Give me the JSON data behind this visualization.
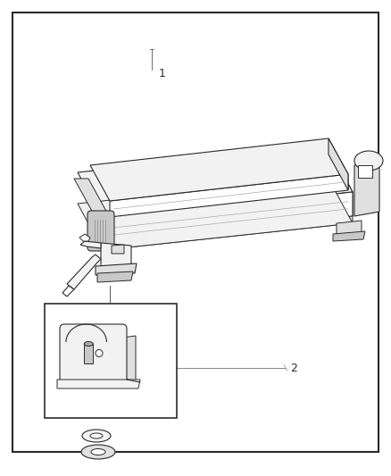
{
  "background_color": "#ffffff",
  "border_color": "#2b2b2b",
  "line_color": "#2b2b2b",
  "fill_white": "#ffffff",
  "fill_light": "#f2f2f2",
  "fill_mid": "#e0e0e0",
  "fill_dark": "#c8c8c8",
  "fill_darker": "#aaaaaa",
  "label1_text": "1",
  "label2_text": "2",
  "fig_width": 4.38,
  "fig_height": 5.33,
  "dpi": 100
}
